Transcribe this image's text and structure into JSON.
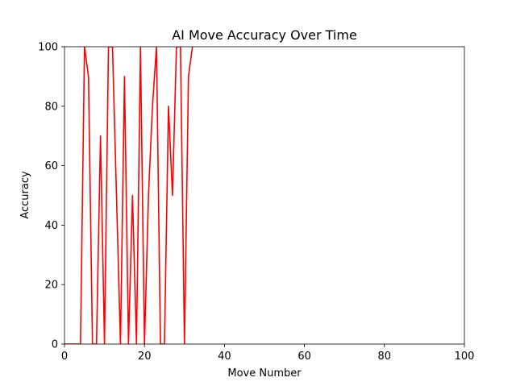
{
  "chart_data": {
    "type": "line",
    "title": "AI Move Accuracy Over Time",
    "xlabel": "Move Number",
    "ylabel": "Accuracy",
    "xlim": [
      0,
      100
    ],
    "ylim": [
      0,
      100
    ],
    "x_ticks": [
      0,
      20,
      40,
      60,
      80,
      100
    ],
    "y_ticks": [
      0,
      20,
      40,
      60,
      80,
      100
    ],
    "grid": false,
    "series": [
      {
        "color": "#ff0000",
        "x": [
          0,
          1,
          2,
          3,
          4,
          5,
          6,
          7,
          8,
          9,
          10,
          11,
          12,
          13,
          14,
          15,
          16,
          17,
          18,
          19,
          20,
          21,
          22,
          23,
          24,
          25,
          26,
          27,
          28,
          29,
          30,
          31,
          32
        ],
        "y": [
          0,
          0,
          0,
          0,
          0,
          100,
          90,
          0,
          0,
          70,
          0,
          100,
          100,
          50,
          0,
          90,
          0,
          50,
          0,
          100,
          0,
          50,
          80,
          100,
          0,
          0,
          80,
          50,
          100,
          100,
          0,
          90,
          100
        ]
      }
    ]
  }
}
